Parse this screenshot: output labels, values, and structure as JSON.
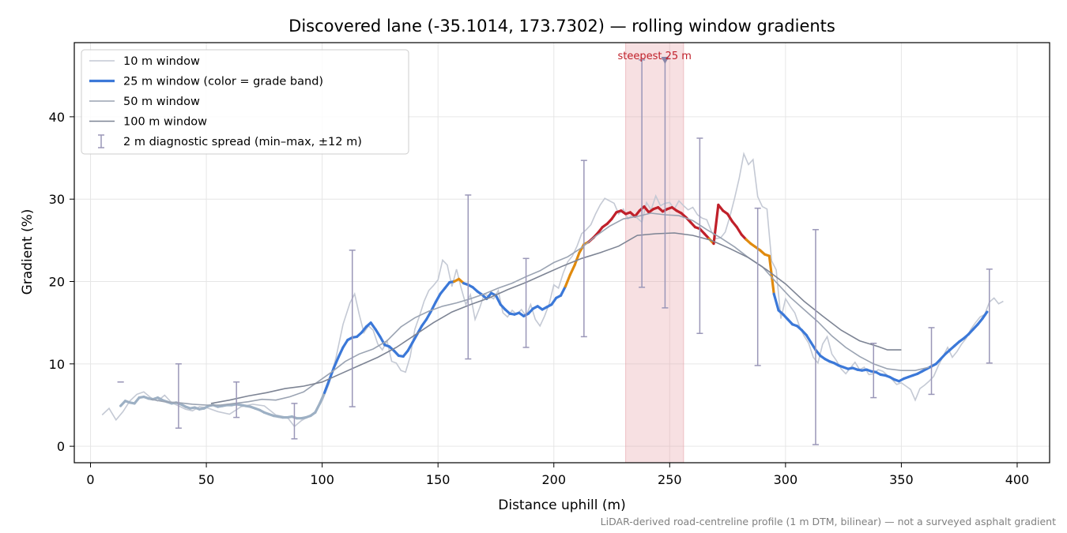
{
  "chart_data": {
    "type": "line",
    "title": "Discovered lane (-35.1014, 173.7302) — rolling window gradients",
    "xlabel": "Distance uphill (m)",
    "ylabel": "Gradient (%)",
    "xlim": [
      -7,
      414
    ],
    "ylim": [
      -2,
      49
    ],
    "xticks": [
      0,
      50,
      100,
      150,
      200,
      250,
      300,
      350,
      400
    ],
    "yticks": [
      0,
      10,
      20,
      30,
      40
    ],
    "grid": true,
    "legend_position": "top-left",
    "legend": [
      {
        "label": "10 m window",
        "style": "line",
        "color": "#c4c9d4"
      },
      {
        "label": "25 m window (color = grade band)",
        "style": "thick-line",
        "color": "#3b78d8"
      },
      {
        "label": "50 m window",
        "style": "line",
        "color": "#9aa3b2"
      },
      {
        "label": "100 m window",
        "style": "line",
        "color": "#7d8494"
      },
      {
        "label": "2 m diagnostic spread (min–max, ±12 m)",
        "style": "errorbar",
        "color": "#9a97b8"
      }
    ],
    "highlight": {
      "x_start": 231,
      "x_end": 256,
      "label": "steepest 25 m",
      "marker_x": 248,
      "color": "#e6a0a6"
    },
    "grade_band_colors": {
      "low": "#3b78d8",
      "mid": "#e08a0e",
      "high": "#c0202a",
      "flat": "#9db0c4"
    },
    "series": [
      {
        "name": "10 m window",
        "color": "#c4c9d4",
        "x": [
          5,
          8,
          11,
          14,
          17,
          20,
          23,
          26,
          29,
          32,
          35,
          38,
          41,
          44,
          47,
          50,
          55,
          60,
          65,
          70,
          75,
          80,
          85,
          88,
          91,
          94,
          97,
          100,
          103,
          106,
          109,
          112,
          114,
          116,
          118,
          120,
          122,
          124,
          126,
          128,
          130,
          132,
          134,
          136,
          138,
          140,
          142,
          144,
          146,
          148,
          150,
          152,
          154,
          156,
          158,
          160,
          162,
          164,
          166,
          168,
          170,
          172,
          174,
          176,
          178,
          180,
          182,
          184,
          186,
          188,
          190,
          192,
          194,
          196,
          198,
          200,
          202,
          204,
          206,
          208,
          210,
          212,
          214,
          216,
          218,
          220,
          222,
          224,
          226,
          228,
          230,
          232,
          234,
          236,
          238,
          240,
          242,
          244,
          246,
          248,
          250,
          252,
          254,
          256,
          258,
          260,
          262,
          264,
          266,
          268,
          270,
          272,
          274,
          276,
          278,
          280,
          282,
          284,
          286,
          288,
          290,
          292,
          294,
          296,
          298,
          300,
          302,
          304,
          306,
          308,
          310,
          312,
          314,
          316,
          318,
          320,
          322,
          324,
          326,
          328,
          330,
          332,
          334,
          336,
          338,
          340,
          342,
          344,
          346,
          348,
          350,
          352,
          354,
          356,
          358,
          360,
          362,
          364,
          366,
          368,
          370,
          372,
          374,
          376,
          378,
          380,
          382,
          384,
          386,
          388,
          390,
          392,
          394
        ],
        "y": [
          3.8,
          4.6,
          3.2,
          4.2,
          5.5,
          6.3,
          6.6,
          5.9,
          5.5,
          6.2,
          5.3,
          4.9,
          4.5,
          4.3,
          4.8,
          4.7,
          4.2,
          3.9,
          4.8,
          5.1,
          4.9,
          3.8,
          3.5,
          2.4,
          3.1,
          3.6,
          4.2,
          5.5,
          7.6,
          10.8,
          14.8,
          17.4,
          18.5,
          16.0,
          13.8,
          14.6,
          14.1,
          12.4,
          11.7,
          12.8,
          10.3,
          10.1,
          9.2,
          9.0,
          10.9,
          14.2,
          15.8,
          17.6,
          18.9,
          19.5,
          20.2,
          22.6,
          22.0,
          19.4,
          21.5,
          19.2,
          17.2,
          18.4,
          15.4,
          16.8,
          18.5,
          18.2,
          17.9,
          18.9,
          16.2,
          15.7,
          16.5,
          16.0,
          16.6,
          15.8,
          17.2,
          15.4,
          14.6,
          15.8,
          17.3,
          19.6,
          19.2,
          21.0,
          22.4,
          23.1,
          24.3,
          25.8,
          26.3,
          26.9,
          28.2,
          29.3,
          30.1,
          29.8,
          29.5,
          28.2,
          28.8,
          27.6,
          28.1,
          27.7,
          27.2,
          29.6,
          28.7,
          30.4,
          29.2,
          29.5,
          29.6,
          28.8,
          29.8,
          29.2,
          28.7,
          29.0,
          28.1,
          27.7,
          27.5,
          26.1,
          25.2,
          25.3,
          26.0,
          27.9,
          30.1,
          32.5,
          35.5,
          34.2,
          34.8,
          30.3,
          29.1,
          28.8,
          22.5,
          21.4,
          15.5,
          17.9,
          17.0,
          16.2,
          14.6,
          13.4,
          12.5,
          10.8,
          10.1,
          12.4,
          13.3,
          11.2,
          10.4,
          9.4,
          8.8,
          9.5,
          10.2,
          9.3,
          9.6,
          8.7,
          8.8,
          9.3,
          9.1,
          8.6,
          8.1,
          7.5,
          7.7,
          7.3,
          6.9,
          5.6,
          7.0,
          7.4,
          7.9,
          8.5,
          9.8,
          10.9,
          12.0,
          10.8,
          11.5,
          12.4,
          13.1,
          14.2,
          15.0,
          15.7,
          16.0,
          17.5,
          18.0,
          17.3,
          17.6
        ]
      },
      {
        "name": "25 m window (color = grade band)",
        "color": "#3b78d8",
        "x": [
          13,
          15,
          17,
          19,
          21,
          23,
          25,
          27,
          29,
          31,
          33,
          35,
          37,
          39,
          41,
          43,
          45,
          47,
          49,
          51,
          53,
          55,
          57,
          59,
          61,
          63,
          65,
          67,
          69,
          71,
          73,
          75,
          77,
          79,
          81,
          83,
          85,
          87,
          89,
          91,
          93,
          95,
          97,
          99,
          101,
          103,
          105,
          107,
          109,
          111,
          113,
          115,
          117,
          119,
          121,
          123,
          125,
          127,
          129,
          131,
          133,
          135,
          137,
          139,
          141,
          143,
          145,
          147,
          149,
          151,
          153,
          155,
          157,
          159,
          161,
          163,
          165,
          167,
          169,
          171,
          173,
          175,
          177,
          179,
          181,
          183,
          185,
          187,
          189,
          191,
          193,
          195,
          197,
          199,
          201,
          203,
          205,
          207,
          209,
          211,
          213,
          215,
          217,
          219,
          221,
          223,
          225,
          227,
          229,
          231,
          233,
          235,
          237,
          239,
          241,
          243,
          245,
          247,
          249,
          251,
          253,
          255,
          257,
          259,
          261,
          263,
          265,
          267,
          269,
          271,
          273,
          275,
          277,
          279,
          281,
          283,
          285,
          287,
          289,
          291,
          293,
          295,
          297,
          299,
          301,
          303,
          305,
          307,
          309,
          311,
          313,
          315,
          317,
          319,
          321,
          323,
          325,
          327,
          329,
          331,
          333,
          335,
          337,
          339,
          341,
          343,
          345,
          347,
          349,
          351,
          353,
          355,
          357,
          359,
          361,
          363,
          365,
          367,
          369,
          371,
          373,
          375,
          377,
          379,
          381,
          383,
          385,
          387
        ],
        "y": [
          4.9,
          5.5,
          5.3,
          5.2,
          5.9,
          6.0,
          5.8,
          5.7,
          5.9,
          5.6,
          5.4,
          5.2,
          5.3,
          5.1,
          4.8,
          4.6,
          4.7,
          4.5,
          4.6,
          4.9,
          5.0,
          4.8,
          4.9,
          5.0,
          5.0,
          5.1,
          5.0,
          4.9,
          4.8,
          4.6,
          4.4,
          4.1,
          3.9,
          3.7,
          3.6,
          3.5,
          3.5,
          3.6,
          3.4,
          3.4,
          3.5,
          3.7,
          4.1,
          5.2,
          6.5,
          8.0,
          9.5,
          10.8,
          12.0,
          12.9,
          13.2,
          13.3,
          13.8,
          14.5,
          15.0,
          14.2,
          13.3,
          12.3,
          12.1,
          11.6,
          11.0,
          10.9,
          11.6,
          12.6,
          13.6,
          14.6,
          15.4,
          16.4,
          17.5,
          18.5,
          19.2,
          19.9,
          20.0,
          20.3,
          19.8,
          19.6,
          19.3,
          18.8,
          18.4,
          17.9,
          18.6,
          18.3,
          17.2,
          16.6,
          16.1,
          16.0,
          16.2,
          15.8,
          16.1,
          16.7,
          17.0,
          16.6,
          16.9,
          17.2,
          18.0,
          18.3,
          19.4,
          20.8,
          22.0,
          23.5,
          24.5,
          24.8,
          25.3,
          25.9,
          26.6,
          27.0,
          27.6,
          28.4,
          28.6,
          28.2,
          28.4,
          27.9,
          28.6,
          29.1,
          28.4,
          28.8,
          29.0,
          28.5,
          28.8,
          29.0,
          28.6,
          28.3,
          27.8,
          27.2,
          26.6,
          26.4,
          25.8,
          25.2,
          24.6,
          29.3,
          28.6,
          28.2,
          27.3,
          26.6,
          25.7,
          25.1,
          24.6,
          24.2,
          23.8,
          23.3,
          23.1,
          18.5,
          16.5,
          16.0,
          15.4,
          14.8,
          14.6,
          14.1,
          13.5,
          12.6,
          11.7,
          11.0,
          10.6,
          10.3,
          10.1,
          9.8,
          9.6,
          9.4,
          9.5,
          9.3,
          9.2,
          9.3,
          9.1,
          9.0,
          8.7,
          8.6,
          8.4,
          8.1,
          7.9,
          8.2,
          8.4,
          8.6,
          8.8,
          9.1,
          9.4,
          9.7,
          10.0,
          10.6,
          11.2,
          11.7,
          12.2,
          12.7,
          13.1,
          13.6,
          14.2,
          14.8,
          15.5,
          16.3
        ]
      },
      {
        "name": "50 m window",
        "color": "#9aa3b2",
        "x": [
          26,
          32,
          38,
          44,
          50,
          56,
          62,
          68,
          74,
          80,
          86,
          92,
          98,
          104,
          110,
          116,
          122,
          128,
          134,
          140,
          146,
          152,
          158,
          164,
          170,
          176,
          182,
          188,
          194,
          200,
          206,
          212,
          218,
          224,
          230,
          236,
          242,
          248,
          254,
          260,
          266,
          272,
          278,
          284,
          290,
          296,
          302,
          308,
          314,
          320,
          326,
          332,
          338,
          344,
          350,
          356,
          362
        ],
        "y": [
          5.7,
          5.4,
          5.3,
          5.1,
          5.0,
          5.0,
          5.2,
          5.4,
          5.7,
          5.6,
          6.0,
          6.6,
          7.8,
          9.0,
          10.3,
          11.2,
          11.8,
          12.8,
          14.5,
          15.6,
          16.4,
          17.0,
          17.4,
          17.9,
          18.5,
          19.2,
          19.8,
          20.6,
          21.3,
          22.3,
          23.0,
          24.1,
          25.5,
          26.7,
          27.6,
          27.9,
          28.3,
          28.1,
          28.0,
          27.4,
          26.3,
          25.3,
          24.2,
          22.9,
          21.8,
          19.9,
          18.1,
          16.6,
          15.1,
          13.4,
          12.0,
          10.9,
          10.0,
          9.4,
          9.2,
          9.2,
          9.6
        ]
      },
      {
        "name": "100 m window",
        "color": "#7d8494",
        "x": [
          52,
          60,
          68,
          76,
          84,
          92,
          100,
          108,
          116,
          124,
          132,
          140,
          148,
          156,
          164,
          172,
          180,
          188,
          196,
          204,
          212,
          220,
          228,
          236,
          244,
          252,
          260,
          268,
          276,
          284,
          292,
          300,
          308,
          316,
          324,
          332,
          340,
          344,
          350
        ],
        "y": [
          5.2,
          5.6,
          6.1,
          6.5,
          7.0,
          7.3,
          7.8,
          8.8,
          9.8,
          10.8,
          12.0,
          13.5,
          15.0,
          16.3,
          17.2,
          18.0,
          19.0,
          19.9,
          20.9,
          21.9,
          22.8,
          23.5,
          24.3,
          25.6,
          25.8,
          25.9,
          25.6,
          25.0,
          24.0,
          22.9,
          21.4,
          19.7,
          17.6,
          15.8,
          14.1,
          12.8,
          12.1,
          11.7,
          11.7
        ]
      }
    ],
    "diagnostic_spread": {
      "name": "2 m diagnostic spread (min–max, ±12 m)",
      "color": "#9a97b8",
      "x": [
        13,
        38,
        63,
        88,
        113,
        163,
        188,
        213,
        238,
        248,
        263,
        288,
        313,
        338,
        363,
        388
      ],
      "min": [
        7.8,
        2.2,
        3.5,
        0.9,
        4.8,
        10.6,
        12.0,
        13.3,
        19.3,
        16.8,
        13.7,
        9.8,
        0.2,
        5.9,
        6.3,
        10.1
      ],
      "max": [
        7.8,
        10.0,
        7.8,
        5.2,
        23.8,
        30.5,
        22.8,
        34.7,
        46.9,
        47.0,
        37.4,
        28.9,
        26.3,
        12.5,
        14.4,
        21.5
      ]
    },
    "footnote": "LiDAR-derived road-centreline profile (1 m DTM, bilinear) — not a surveyed asphalt gradient"
  }
}
